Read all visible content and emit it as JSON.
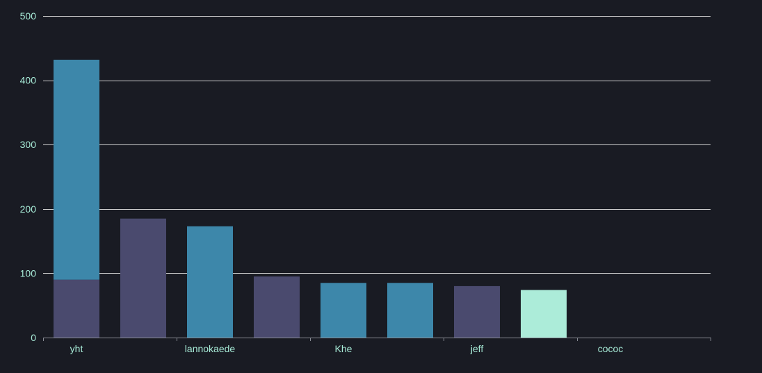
{
  "chart_data": {
    "type": "bar",
    "stacked": true,
    "categories": [
      "yht",
      "",
      "lannokaede",
      "",
      "Khe",
      "",
      "jeff",
      "",
      "cococ",
      ""
    ],
    "series": [
      {
        "color": "#4a4a6e",
        "values": [
          90,
          185,
          0,
          95,
          0,
          0,
          80,
          0,
          0,
          0
        ]
      },
      {
        "color": "#3d87aa",
        "values": [
          342,
          0,
          173,
          0,
          85,
          85,
          0,
          0,
          0,
          0
        ]
      },
      {
        "color": "#acecd9",
        "values": [
          0,
          0,
          0,
          0,
          0,
          0,
          0,
          74,
          0,
          0
        ]
      }
    ],
    "ylim": [
      0,
      500
    ],
    "yticks": [
      0,
      100,
      200,
      300,
      400,
      500
    ],
    "grid": true,
    "title": "",
    "xlabel": "",
    "ylabel": ""
  },
  "colors": {
    "background": "#191b23",
    "grid": "#d0d0d0",
    "axis": "#8a8d96",
    "tick_text": "#a8ecd8"
  }
}
